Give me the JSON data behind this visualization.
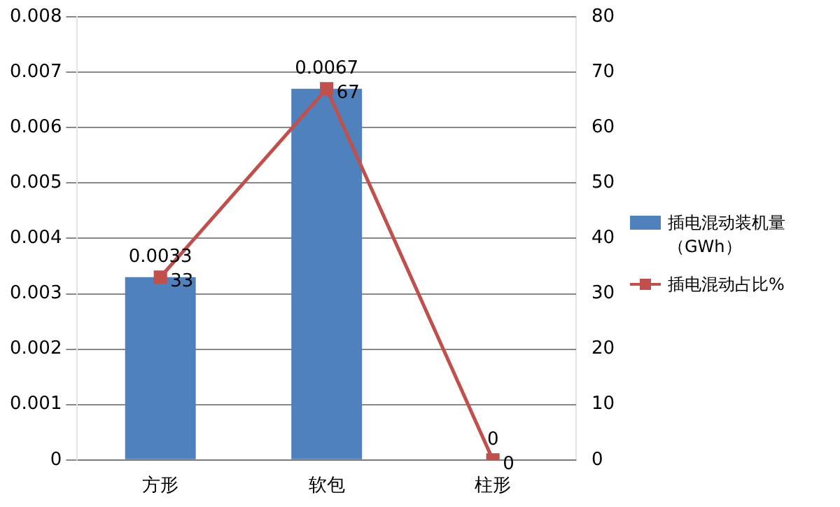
{
  "chart_data": {
    "type": "bar",
    "categories": [
      "方形",
      "软包",
      "柱形"
    ],
    "series": [
      {
        "name": "插电混动装机量（GWh）",
        "color": "#4f81bd",
        "values": [
          0.0033,
          0.0067,
          0
        ]
      },
      {
        "name": "插电混动占比%",
        "type": "line",
        "axis": "y2",
        "color": "#c0504d",
        "values": [
          33,
          67,
          0
        ],
        "marker": "square"
      }
    ],
    "ylim": [
      0,
      0.008
    ],
    "yticks": [
      0,
      0.001,
      0.002,
      0.003,
      0.004,
      0.005,
      0.006,
      0.007,
      0.008
    ],
    "y2lim": [
      0,
      80
    ],
    "y2ticks": [
      0,
      10,
      20,
      30,
      40,
      50,
      60,
      70,
      80
    ],
    "grid": "y",
    "legend": "right",
    "data_labels": true
  }
}
